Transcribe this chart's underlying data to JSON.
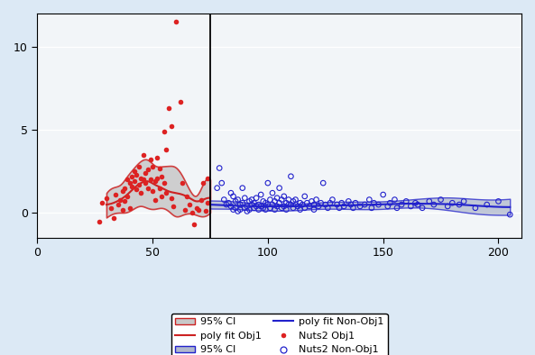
{
  "background_color": "#dce9f5",
  "plot_bg_color": "#f2f5f8",
  "xlim": [
    0,
    210
  ],
  "ylim": [
    -1.5,
    12
  ],
  "xticks": [
    0,
    50,
    100,
    150,
    200
  ],
  "yticks": [
    0,
    5,
    10
  ],
  "vline_x": 75,
  "red_poly_color": "#cc2222",
  "blue_poly_color": "#2222cc",
  "red_ci_fill": "#c8c8c8",
  "red_ci_edge": "#cc2222",
  "blue_ci_fill": "#b0b8cc",
  "blue_ci_edge": "#2222cc",
  "red_scatter_color": "#dd2222",
  "blue_scatter_color": "#2222cc",
  "red_scatter": [
    [
      27,
      -0.5
    ],
    [
      28,
      0.6
    ],
    [
      30,
      0.9
    ],
    [
      32,
      0.3
    ],
    [
      33,
      -0.3
    ],
    [
      34,
      1.1
    ],
    [
      35,
      0.5
    ],
    [
      36,
      0.8
    ],
    [
      37,
      0.2
    ],
    [
      37,
      1.3
    ],
    [
      38,
      0.7
    ],
    [
      38,
      1.5
    ],
    [
      39,
      1.0
    ],
    [
      39,
      2.0
    ],
    [
      40,
      1.8
    ],
    [
      40,
      0.3
    ],
    [
      41,
      2.2
    ],
    [
      41,
      1.6
    ],
    [
      42,
      2.5
    ],
    [
      42,
      1.9
    ],
    [
      43,
      2.3
    ],
    [
      43,
      1.4
    ],
    [
      44,
      1.7
    ],
    [
      44,
      2.8
    ],
    [
      45,
      2.1
    ],
    [
      45,
      1.2
    ],
    [
      46,
      3.5
    ],
    [
      46,
      2.0
    ],
    [
      47,
      2.4
    ],
    [
      47,
      1.8
    ],
    [
      48,
      2.6
    ],
    [
      48,
      1.5
    ],
    [
      49,
      3.2
    ],
    [
      49,
      2.0
    ],
    [
      50,
      2.8
    ],
    [
      50,
      1.3
    ],
    [
      51,
      1.9
    ],
    [
      51,
      0.8
    ],
    [
      52,
      3.3
    ],
    [
      52,
      2.1
    ],
    [
      53,
      2.7
    ],
    [
      53,
      1.5
    ],
    [
      54,
      2.2
    ],
    [
      54,
      1.0
    ],
    [
      55,
      4.9
    ],
    [
      55,
      1.8
    ],
    [
      56,
      3.8
    ],
    [
      56,
      1.2
    ],
    [
      57,
      6.3
    ],
    [
      58,
      5.2
    ],
    [
      58,
      0.9
    ],
    [
      59,
      0.4
    ],
    [
      60,
      11.5
    ],
    [
      62,
      6.7
    ],
    [
      63,
      1.8
    ],
    [
      64,
      0.2
    ],
    [
      65,
      1.0
    ],
    [
      66,
      0.5
    ],
    [
      67,
      0.0
    ],
    [
      68,
      -0.7
    ],
    [
      69,
      0.3
    ],
    [
      70,
      0.2
    ],
    [
      71,
      0.8
    ],
    [
      72,
      1.8
    ],
    [
      73,
      0.1
    ],
    [
      74,
      0.6
    ],
    [
      74,
      2.1
    ]
  ],
  "blue_scatter": [
    [
      78,
      1.5
    ],
    [
      79,
      2.7
    ],
    [
      80,
      1.8
    ],
    [
      81,
      0.8
    ],
    [
      82,
      0.5
    ],
    [
      83,
      0.6
    ],
    [
      84,
      1.2
    ],
    [
      84,
      0.4
    ],
    [
      85,
      1.0
    ],
    [
      85,
      0.2
    ],
    [
      86,
      0.7
    ],
    [
      86,
      0.3
    ],
    [
      87,
      0.8
    ],
    [
      87,
      0.1
    ],
    [
      88,
      0.5
    ],
    [
      88,
      0.2
    ],
    [
      89,
      1.5
    ],
    [
      89,
      0.6
    ],
    [
      90,
      0.9
    ],
    [
      90,
      0.3
    ],
    [
      91,
      0.4
    ],
    [
      91,
      0.1
    ],
    [
      92,
      0.7
    ],
    [
      92,
      0.2
    ],
    [
      93,
      0.5
    ],
    [
      93,
      0.8
    ],
    [
      94,
      0.3
    ],
    [
      94,
      0.6
    ],
    [
      95,
      0.9
    ],
    [
      95,
      0.4
    ],
    [
      96,
      0.5
    ],
    [
      96,
      0.2
    ],
    [
      97,
      1.1
    ],
    [
      97,
      0.4
    ],
    [
      98,
      0.7
    ],
    [
      98,
      0.3
    ],
    [
      99,
      0.6
    ],
    [
      99,
      0.2
    ],
    [
      100,
      1.8
    ],
    [
      100,
      0.5
    ],
    [
      101,
      0.8
    ],
    [
      101,
      0.3
    ],
    [
      102,
      1.2
    ],
    [
      102,
      0.5
    ],
    [
      103,
      0.7
    ],
    [
      103,
      0.2
    ],
    [
      104,
      0.9
    ],
    [
      104,
      0.4
    ],
    [
      105,
      1.5
    ],
    [
      105,
      0.6
    ],
    [
      106,
      0.8
    ],
    [
      106,
      0.3
    ],
    [
      107,
      1.0
    ],
    [
      107,
      0.4
    ],
    [
      108,
      0.6
    ],
    [
      108,
      0.2
    ],
    [
      109,
      0.5
    ],
    [
      109,
      0.8
    ],
    [
      110,
      2.2
    ],
    [
      110,
      0.5
    ],
    [
      111,
      0.7
    ],
    [
      111,
      0.3
    ],
    [
      112,
      0.5
    ],
    [
      112,
      0.8
    ],
    [
      113,
      0.4
    ],
    [
      114,
      0.6
    ],
    [
      114,
      0.2
    ],
    [
      115,
      0.5
    ],
    [
      116,
      1.0
    ],
    [
      116,
      0.3
    ],
    [
      117,
      0.6
    ],
    [
      118,
      0.4
    ],
    [
      119,
      0.7
    ],
    [
      120,
      0.5
    ],
    [
      120,
      0.2
    ],
    [
      121,
      0.8
    ],
    [
      122,
      0.4
    ],
    [
      123,
      0.6
    ],
    [
      124,
      1.8
    ],
    [
      125,
      0.5
    ],
    [
      126,
      0.3
    ],
    [
      127,
      0.6
    ],
    [
      128,
      0.8
    ],
    [
      130,
      0.5
    ],
    [
      131,
      0.3
    ],
    [
      132,
      0.6
    ],
    [
      133,
      0.4
    ],
    [
      135,
      0.7
    ],
    [
      136,
      0.5
    ],
    [
      137,
      0.3
    ],
    [
      138,
      0.6
    ],
    [
      140,
      0.4
    ],
    [
      142,
      0.5
    ],
    [
      144,
      0.8
    ],
    [
      145,
      0.3
    ],
    [
      146,
      0.6
    ],
    [
      148,
      0.5
    ],
    [
      150,
      1.1
    ],
    [
      152,
      0.4
    ],
    [
      153,
      0.6
    ],
    [
      155,
      0.8
    ],
    [
      156,
      0.3
    ],
    [
      158,
      0.5
    ],
    [
      160,
      0.7
    ],
    [
      162,
      0.4
    ],
    [
      164,
      0.6
    ],
    [
      165,
      0.5
    ],
    [
      167,
      0.3
    ],
    [
      170,
      0.7
    ],
    [
      172,
      0.5
    ],
    [
      175,
      0.8
    ],
    [
      178,
      0.4
    ],
    [
      180,
      0.6
    ],
    [
      183,
      0.5
    ],
    [
      185,
      0.7
    ],
    [
      190,
      0.3
    ],
    [
      195,
      0.5
    ],
    [
      200,
      0.7
    ],
    [
      205,
      -0.1
    ]
  ],
  "red_ci_x": [
    30,
    33,
    36,
    39,
    42,
    45,
    48,
    51,
    54,
    57,
    60,
    63,
    66,
    69,
    72,
    75
  ],
  "red_ci_upper": [
    1.2,
    1.3,
    1.5,
    2.2,
    2.8,
    3.2,
    3.3,
    3.0,
    2.8,
    2.6,
    2.5,
    2.2,
    1.6,
    1.2,
    1.8,
    2.0
  ],
  "red_ci_lower": [
    -0.4,
    -0.2,
    0.0,
    0.1,
    0.3,
    0.5,
    0.4,
    0.2,
    0.1,
    0.0,
    -0.1,
    0.0,
    0.0,
    -0.1,
    -0.2,
    -0.1
  ],
  "red_fit_x": [
    30,
    33,
    36,
    39,
    42,
    45,
    48,
    51,
    54,
    57,
    60,
    63,
    66,
    69,
    72,
    75
  ],
  "red_fit_y": [
    0.5,
    0.6,
    0.8,
    1.1,
    1.5,
    1.8,
    1.9,
    1.7,
    1.5,
    1.3,
    1.2,
    1.1,
    0.9,
    0.7,
    0.8,
    0.9
  ],
  "blue_ci_x": [
    75,
    80,
    85,
    90,
    95,
    100,
    110,
    120,
    130,
    140,
    150,
    160,
    170,
    180,
    190,
    205
  ],
  "blue_ci_upper": [
    0.75,
    0.7,
    0.65,
    0.6,
    0.58,
    0.57,
    0.58,
    0.6,
    0.62,
    0.68,
    0.75,
    0.8,
    0.85,
    0.9,
    0.88,
    0.85
  ],
  "blue_ci_lower": [
    0.25,
    0.22,
    0.2,
    0.18,
    0.17,
    0.17,
    0.18,
    0.2,
    0.22,
    0.25,
    0.28,
    0.3,
    0.25,
    0.15,
    0.0,
    -0.15
  ],
  "blue_fit_x": [
    75,
    80,
    85,
    90,
    95,
    100,
    110,
    120,
    130,
    140,
    150,
    160,
    170,
    180,
    190,
    205
  ],
  "blue_fit_y": [
    0.5,
    0.47,
    0.44,
    0.42,
    0.4,
    0.4,
    0.4,
    0.42,
    0.44,
    0.48,
    0.52,
    0.56,
    0.55,
    0.52,
    0.44,
    0.35
  ]
}
